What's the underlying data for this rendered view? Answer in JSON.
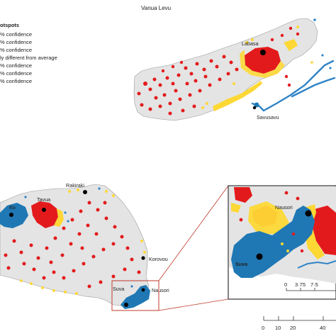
{
  "map": {
    "title": "Vanua Levu"
  },
  "legend": {
    "heading": "otspots",
    "items": [
      "% confidence",
      "% confidence",
      "% confidence",
      "ly different from average",
      "% confidence",
      "% confidence",
      "% confidence"
    ]
  },
  "places": {
    "labasa": "Labasa",
    "savusavu": "Savusavu",
    "rakiraki": "Rakiraki",
    "tavua": "Tavua",
    "ba": "Ba",
    "korovou": "Korovou",
    "nausori": "Nausori",
    "suva": "Suva",
    "inset_nausori": "Nausori",
    "inset_suva": "Suva"
  },
  "inset_scale": {
    "ticks": [
      "0",
      "3·75",
      "7·5"
    ]
  },
  "main_scale": {
    "ticks": [
      "0",
      "10",
      "20",
      "40"
    ]
  },
  "colors": {
    "land": "#e4e4e4",
    "water_outline": "#2f83c6",
    "hot_99": "#e31a1c",
    "hot_90": "#fdd835",
    "cold_99": "#1f78b4",
    "inset_frame": "#c0392b"
  }
}
